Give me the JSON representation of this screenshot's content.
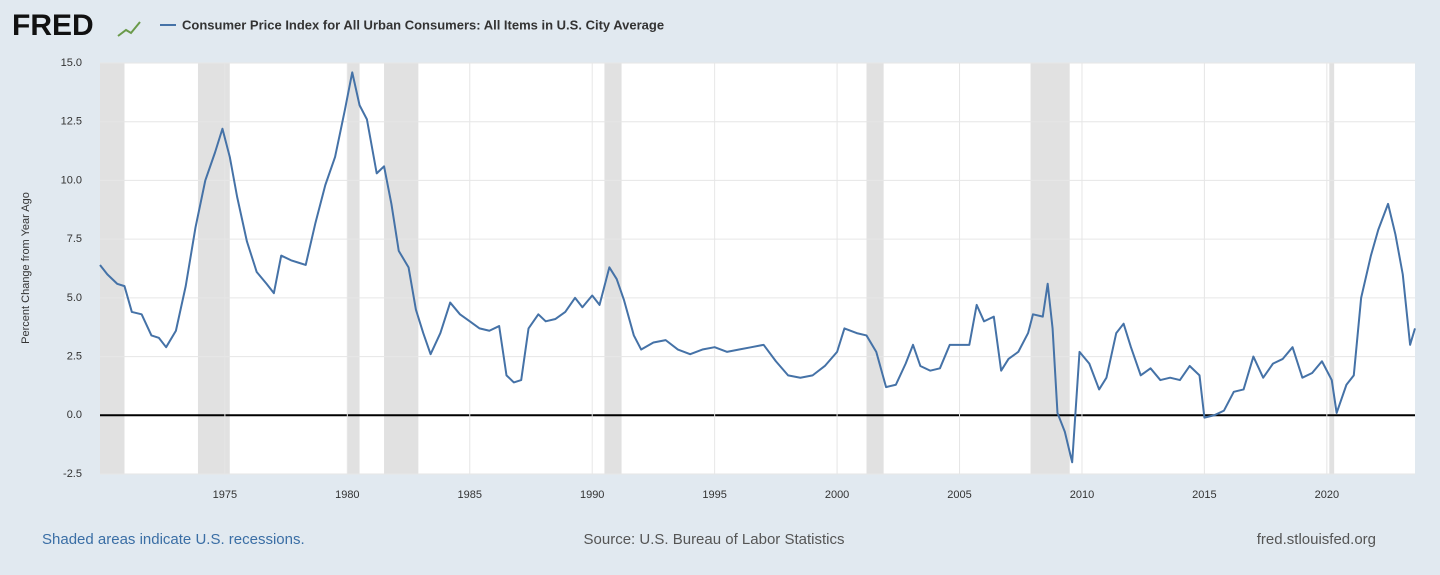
{
  "header": {
    "logo": "FRED"
  },
  "chart_data": {
    "type": "line",
    "ylabel": "Percent Change from Year Ago",
    "note": "Shaded areas indicate U.S. recessions.",
    "source": "Source: U.S. Bureau of Labor Statistics",
    "credit": "fred.stlouisfed.org",
    "x": [
      1969.9,
      1970.2,
      1970.6,
      1970.9,
      1971.2,
      1971.6,
      1972.0,
      1972.3,
      1972.6,
      1973.0,
      1973.4,
      1973.8,
      1974.2,
      1974.6,
      1974.9,
      1975.2,
      1975.5,
      1975.9,
      1976.3,
      1976.7,
      1977.0,
      1977.3,
      1977.7,
      1978.0,
      1978.3,
      1978.7,
      1979.1,
      1979.5,
      1979.9,
      1980.2,
      1980.5,
      1980.8,
      1981.2,
      1981.5,
      1981.8,
      1982.1,
      1982.5,
      1982.8,
      1983.1,
      1983.4,
      1983.8,
      1984.2,
      1984.6,
      1985.0,
      1985.4,
      1985.8,
      1986.2,
      1986.5,
      1986.8,
      1987.1,
      1987.4,
      1987.8,
      1988.1,
      1988.5,
      1988.9,
      1989.3,
      1989.6,
      1990.0,
      1990.3,
      1990.7,
      1991.0,
      1991.3,
      1991.7,
      1992.0,
      1992.5,
      1993.0,
      1993.5,
      1994.0,
      1994.5,
      1995.0,
      1995.5,
      1996.0,
      1996.5,
      1997.0,
      1997.5,
      1998.0,
      1998.5,
      1999.0,
      1999.5,
      2000.0,
      2000.3,
      2000.8,
      2001.2,
      2001.6,
      2002.0,
      2002.4,
      2002.8,
      2003.1,
      2003.4,
      2003.8,
      2004.2,
      2004.6,
      2005.0,
      2005.4,
      2005.7,
      2006.0,
      2006.4,
      2006.7,
      2007.0,
      2007.4,
      2007.8,
      2008.0,
      2008.4,
      2008.6,
      2008.8,
      2009.0,
      2009.3,
      2009.6,
      2009.9,
      2010.3,
      2010.7,
      2011.0,
      2011.4,
      2011.7,
      2012.0,
      2012.4,
      2012.8,
      2013.2,
      2013.6,
      2014.0,
      2014.4,
      2014.8,
      2015.0,
      2015.4,
      2015.8,
      2016.2,
      2016.6,
      2017.0,
      2017.4,
      2017.8,
      2018.2,
      2018.6,
      2019.0,
      2019.4,
      2019.8,
      2020.2,
      2020.4,
      2020.8,
      2021.1,
      2021.4,
      2021.8,
      2022.1,
      2022.5,
      2022.8,
      2023.1,
      2023.4,
      2023.6
    ],
    "series": [
      {
        "name": "Consumer Price Index for All Urban Consumers: All Items in U.S. City Average",
        "color": "#4572a7",
        "values": [
          6.4,
          6.0,
          5.6,
          5.5,
          4.4,
          4.3,
          3.4,
          3.3,
          2.9,
          3.6,
          5.5,
          8.0,
          10.0,
          11.2,
          12.2,
          11.0,
          9.3,
          7.4,
          6.1,
          5.6,
          5.2,
          6.8,
          6.6,
          6.5,
          6.4,
          8.2,
          9.8,
          11.0,
          13.0,
          14.6,
          13.2,
          12.6,
          10.3,
          10.6,
          9.0,
          7.0,
          6.3,
          4.5,
          3.5,
          2.6,
          3.5,
          4.8,
          4.3,
          4.0,
          3.7,
          3.6,
          3.8,
          1.7,
          1.4,
          1.5,
          3.7,
          4.3,
          4.0,
          4.1,
          4.4,
          5.0,
          4.6,
          5.1,
          4.7,
          6.3,
          5.8,
          4.9,
          3.4,
          2.8,
          3.1,
          3.2,
          2.8,
          2.6,
          2.8,
          2.9,
          2.7,
          2.8,
          2.9,
          3.0,
          2.3,
          1.7,
          1.6,
          1.7,
          2.1,
          2.7,
          3.7,
          3.5,
          3.4,
          2.7,
          1.2,
          1.3,
          2.2,
          3.0,
          2.1,
          1.9,
          2.0,
          3.0,
          3.0,
          3.0,
          4.7,
          4.0,
          4.2,
          1.9,
          2.4,
          2.7,
          3.5,
          4.3,
          4.2,
          5.6,
          3.7,
          0.1,
          -0.7,
          -2.0,
          2.7,
          2.2,
          1.1,
          1.6,
          3.5,
          3.9,
          2.9,
          1.7,
          2.0,
          1.5,
          1.6,
          1.5,
          2.1,
          1.7,
          -0.1,
          0.0,
          0.2,
          1.0,
          1.1,
          2.5,
          1.6,
          2.2,
          2.4,
          2.9,
          1.6,
          1.8,
          2.3,
          1.5,
          0.1,
          1.3,
          1.7,
          5.0,
          6.8,
          7.9,
          9.0,
          7.7,
          6.0,
          3.0,
          3.7
        ]
      }
    ],
    "recessions": [
      [
        1969.9,
        1970.9
      ],
      [
        1973.9,
        1975.2
      ],
      [
        1980.0,
        1980.5
      ],
      [
        1981.5,
        1982.9
      ],
      [
        1990.5,
        1991.2
      ],
      [
        2001.2,
        2001.9
      ],
      [
        2007.9,
        2009.5
      ],
      [
        2020.1,
        2020.3
      ]
    ],
    "recession_color": "#e1e1e1",
    "xlim": [
      1969.9,
      2023.6
    ],
    "xticks": [
      1975,
      1980,
      1985,
      1990,
      1995,
      2000,
      2005,
      2010,
      2015,
      2020
    ],
    "ylim": [
      -2.5,
      15
    ],
    "yticks": [
      -2.5,
      {
        "value": 0,
        "label": "0.0"
      },
      2.5,
      {
        "value": 5,
        "label": "5.0"
      },
      7.5,
      {
        "value": 10,
        "label": "10.0"
      },
      12.5,
      {
        "value": 15,
        "label": "15.0"
      }
    ],
    "grid": true
  }
}
